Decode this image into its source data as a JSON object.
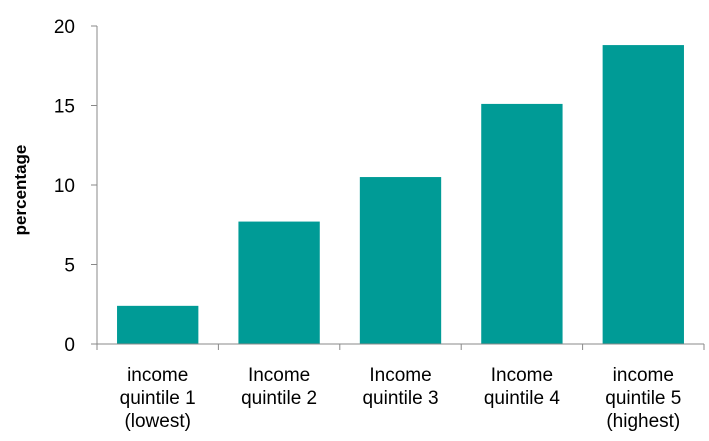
{
  "chart_data": {
    "type": "bar",
    "categories": [
      [
        "income",
        "quintile 1",
        "(lowest)"
      ],
      [
        "Income",
        "quintile 2"
      ],
      [
        "Income",
        "quintile 3"
      ],
      [
        "Income",
        "quintile 4"
      ],
      [
        "income",
        "quintile 5",
        "(highest)"
      ]
    ],
    "values": [
      2.4,
      7.7,
      10.5,
      15.1,
      18.8
    ],
    "title": "",
    "xlabel": "",
    "ylabel": "percentage",
    "ylim": [
      0,
      20
    ],
    "yticks": [
      "0",
      "5",
      "10",
      "15",
      "20"
    ],
    "grid": false,
    "bar_color": "#009b96",
    "axis_color": "#888888"
  }
}
